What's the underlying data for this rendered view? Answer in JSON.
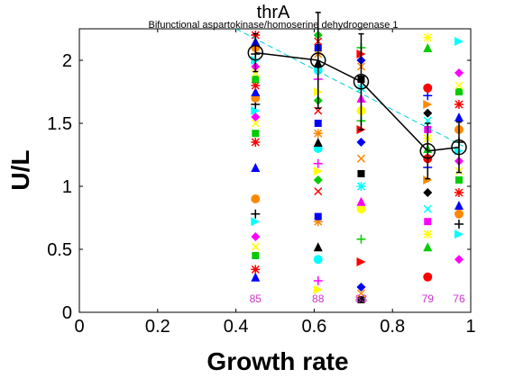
{
  "chart_data": {
    "type": "scatter",
    "title": "thrA",
    "subtitle": "Bifunctional aspartokinase/homoserine dehydrogenase 1",
    "xlabel": "Growth rate",
    "ylabel": "U/L",
    "xlim": [
      0,
      1
    ],
    "ylim": [
      0,
      2.25
    ],
    "xticks": [
      "0",
      "0.2",
      "0.4",
      "0.6",
      "0.8",
      "1"
    ],
    "yticks": [
      "0",
      "0.5",
      "1",
      "1.5",
      "2"
    ],
    "grid": false,
    "mean_series": {
      "x": [
        0.45,
        0.61,
        0.72,
        0.89,
        0.97
      ],
      "y": [
        2.06,
        2.0,
        1.83,
        1.28,
        1.31
      ],
      "error": [
        0.15,
        0.38,
        0.38,
        0.22,
        0.2
      ],
      "color": "#000000"
    },
    "fit_line": {
      "x": [
        0.4,
        0.98
      ],
      "y": [
        2.25,
        1.32
      ],
      "color": "#00cccc"
    },
    "groups": [
      {
        "x": 0.45,
        "count_label": "85",
        "y": [
          0.28,
          0.34,
          0.45,
          0.52,
          0.6,
          0.72,
          0.78,
          0.9,
          1.15,
          1.35,
          1.42,
          1.5,
          1.55,
          1.6,
          1.65,
          1.7,
          1.75,
          1.8,
          1.85,
          1.9,
          1.95,
          2.0,
          2.05,
          2.1,
          2.15,
          2.2
        ]
      },
      {
        "x": 0.61,
        "count_label": "88",
        "y": [
          0.18,
          0.25,
          0.42,
          0.52,
          0.72,
          0.76,
          0.96,
          1.05,
          1.12,
          1.18,
          1.3,
          1.35,
          1.42,
          1.5,
          1.6,
          1.68,
          1.75,
          1.85,
          1.92,
          1.98,
          2.05,
          2.1,
          2.15,
          2.2
        ]
      },
      {
        "x": 0.72,
        "count_label": "83",
        "y": [
          0.1,
          0.15,
          0.2,
          0.4,
          0.58,
          0.82,
          0.88,
          1.0,
          1.1,
          1.22,
          1.35,
          1.45,
          1.52,
          1.6,
          1.7,
          1.78,
          1.85,
          1.95,
          2.0,
          2.05,
          2.1
        ]
      },
      {
        "x": 0.89,
        "count_label": "79",
        "y": [
          0.28,
          0.52,
          0.62,
          0.72,
          0.82,
          0.95,
          1.05,
          1.15,
          1.22,
          1.3,
          1.38,
          1.45,
          1.52,
          1.58,
          1.65,
          1.72,
          1.78,
          2.1,
          2.18
        ]
      },
      {
        "x": 0.97,
        "count_label": "76",
        "y": [
          0.42,
          0.62,
          0.7,
          0.78,
          0.85,
          0.95,
          1.05,
          1.12,
          1.2,
          1.28,
          1.35,
          1.45,
          1.55,
          1.65,
          1.75,
          1.8,
          1.9,
          2.15
        ]
      }
    ],
    "marker_colors": [
      "#0000ff",
      "#ff0000",
      "#00cc00",
      "#ffff00",
      "#ff00ff",
      "#00ffff",
      "#000000",
      "#ff8800"
    ],
    "marker_shapes": [
      "triangle-up",
      "triangle-right",
      "square",
      "circle",
      "diamond",
      "star",
      "plus",
      "cross"
    ]
  }
}
